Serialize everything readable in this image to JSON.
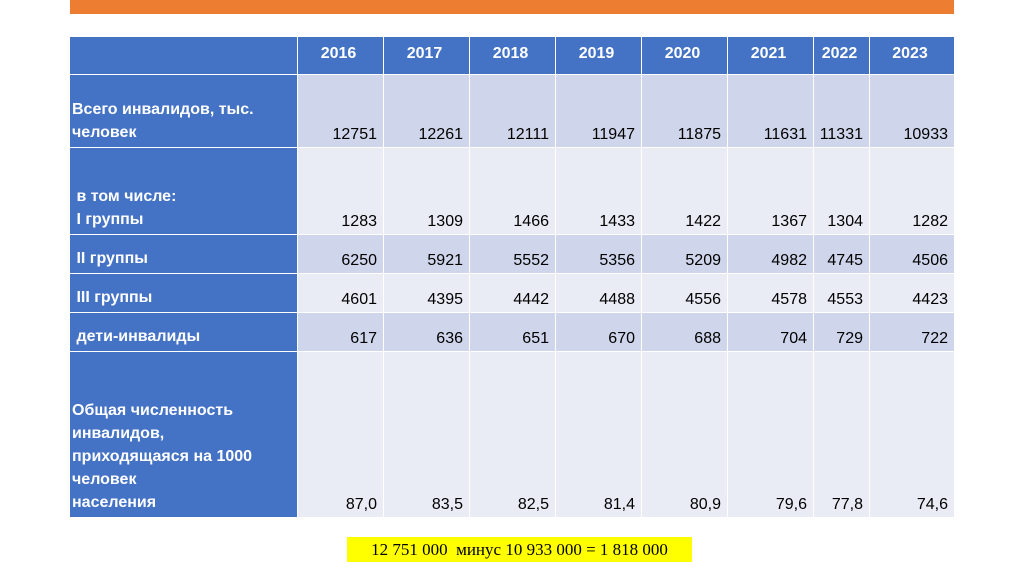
{
  "table": {
    "header": [
      "",
      "2016",
      "2017",
      "2018",
      "2019",
      "2020",
      "2021",
      "2022",
      "2023"
    ],
    "rows": [
      {
        "label": [
          "Всего инвалидов, тыс.",
          "человек"
        ],
        "cells": [
          "12751",
          "12261",
          "12111",
          "11947",
          "11875",
          "11631",
          "11331",
          "10933"
        ]
      },
      {
        "label": [
          " в том числе:",
          " I группы"
        ],
        "cells": [
          "1283",
          "1309",
          "1466",
          "1433",
          "1422",
          "1367",
          "1304",
          "1282"
        ]
      },
      {
        "label": [
          " II группы"
        ],
        "cells": [
          "6250",
          "5921",
          "5552",
          "5356",
          "5209",
          "4982",
          "4745",
          "4506"
        ]
      },
      {
        "label": [
          " III группы"
        ],
        "cells": [
          "4601",
          "4395",
          "4442",
          "4488",
          "4556",
          "4578",
          "4553",
          "4423"
        ]
      },
      {
        "label": [
          " дети-инвалиды"
        ],
        "cells": [
          "617",
          "636",
          "651",
          "670",
          "688",
          "704",
          "729",
          "722"
        ]
      },
      {
        "label": [
          "Общая численность",
          "инвалидов,",
          "приходящаяся на 1000",
          "человек",
          "населения"
        ],
        "cells": [
          "87,0",
          "83,5",
          "82,5",
          "81,4",
          "80,9",
          "79,6",
          "77,8",
          "74,6"
        ]
      }
    ]
  },
  "footer": {
    "note": "12 751 000  минус 10 933 000 = 1 818 000"
  }
}
